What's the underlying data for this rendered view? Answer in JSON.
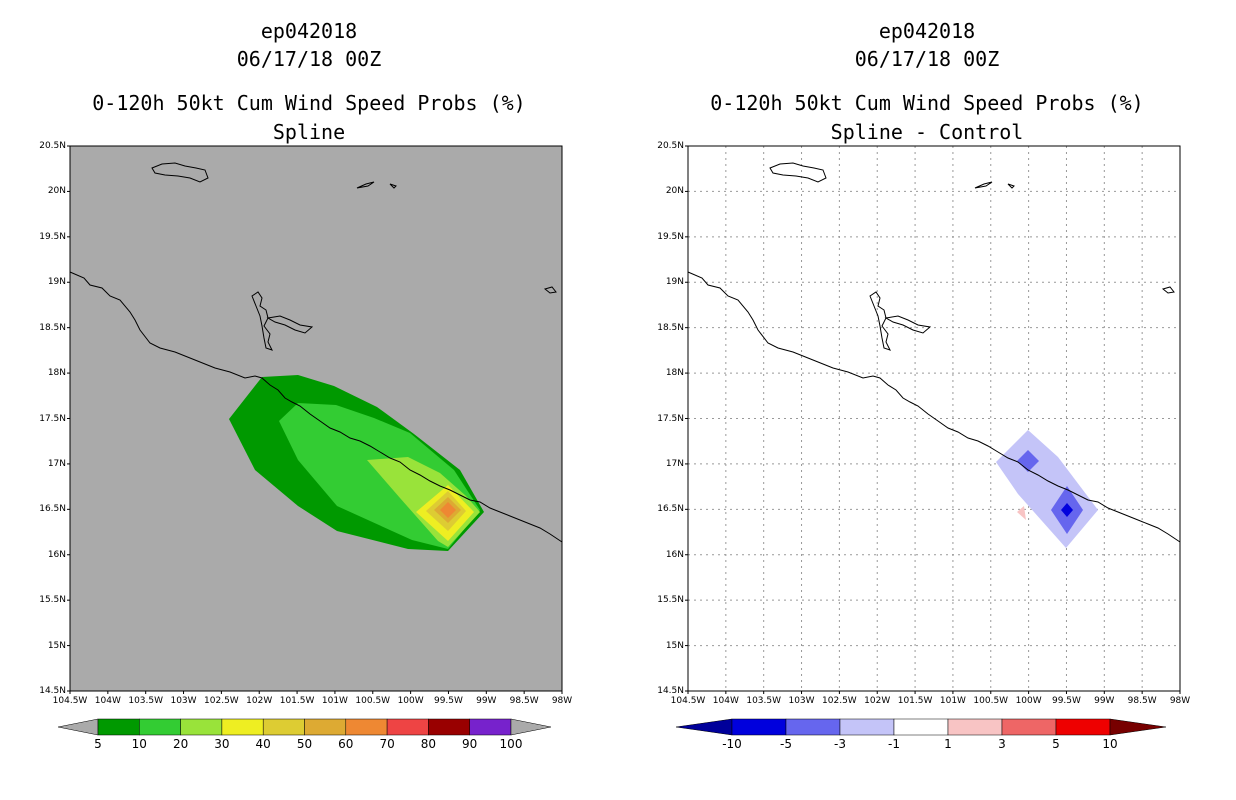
{
  "left": {
    "storm_id": "ep042018",
    "datetime": "06/17/18 00Z",
    "product": "0-120h 50kt Cum Wind Speed Probs (%)",
    "subtitle": "Spline",
    "lat_labels": [
      "20.5N",
      "20N",
      "19.5N",
      "19N",
      "18.5N",
      "18N",
      "17.5N",
      "17N",
      "16.5N",
      "16N",
      "15.5N",
      "15N",
      "14.5N"
    ],
    "lon_labels": [
      "104.5W",
      "104W",
      "103.5W",
      "103W",
      "102.5W",
      "102W",
      "101.5W",
      "101W",
      "100.5W",
      "100W",
      "99.5W",
      "99W",
      "98.5W",
      "98W"
    ],
    "colorbar": {
      "labels": [
        "5",
        "10",
        "20",
        "30",
        "40",
        "50",
        "60",
        "70",
        "80",
        "90",
        "100"
      ],
      "colors": [
        "#009900",
        "#33cc33",
        "#99e33a",
        "#eeee22",
        "#ddcc33",
        "#ddaa33",
        "#ee8833",
        "#ee4444",
        "#990000",
        "#7722cc"
      ],
      "low_color": "#aaaaaa",
      "high_color": "#aaaaaa"
    },
    "background_color": "#aaaaaa"
  },
  "right": {
    "storm_id": "ep042018",
    "datetime": "06/17/18 00Z",
    "product": "0-120h 50kt Cum Wind Speed Probs (%)",
    "subtitle": "Spline - Control",
    "lat_labels": [
      "20.5N",
      "20N",
      "19.5N",
      "19N",
      "18.5N",
      "18N",
      "17.5N",
      "17N",
      "16.5N",
      "16N",
      "15.5N",
      "15N",
      "14.5N"
    ],
    "lon_labels": [
      "104.5W",
      "104W",
      "103.5W",
      "103W",
      "102.5W",
      "102W",
      "101.5W",
      "101W",
      "100.5W",
      "100W",
      "99.5W",
      "99W",
      "98.5W",
      "98W"
    ],
    "colorbar": {
      "labels": [
        "-10",
        "-5",
        "-3",
        "-1",
        "1",
        "3",
        "5",
        "10"
      ],
      "colors": [
        "#0000dd",
        "#6666ee",
        "#c4c4f8",
        "#ffffff",
        "#f8c4c4",
        "#ee6666",
        "#ee0000"
      ],
      "low_color": "#00009a",
      "high_color": "#770000"
    },
    "background_color": "#ffffff"
  }
}
